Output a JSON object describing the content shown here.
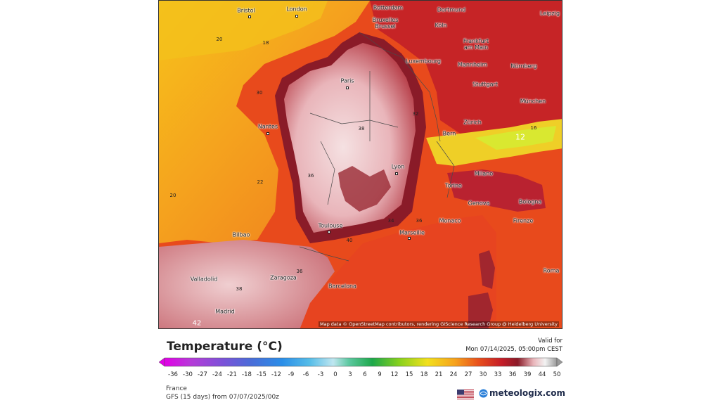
{
  "map": {
    "attribution": "Map data © OpenStreetMap contributors, rendering GIScience Research Group @ Heidelberg University",
    "cities": [
      {
        "name": "Bristol"
      },
      {
        "name": "London"
      },
      {
        "name": "Rotterdam"
      },
      {
        "name": "Dortmund"
      },
      {
        "name": "Leipzig"
      },
      {
        "name": "Bruxelles Brussel"
      },
      {
        "name": "Köln"
      },
      {
        "name": "Frankfurt am Main"
      },
      {
        "name": "Luxembourg"
      },
      {
        "name": "Mannheim"
      },
      {
        "name": "Nürnberg"
      },
      {
        "name": "Stuttgart"
      },
      {
        "name": "München"
      },
      {
        "name": "Paris"
      },
      {
        "name": "Nantes"
      },
      {
        "name": "Zürich"
      },
      {
        "name": "Bern"
      },
      {
        "name": "Lyon"
      },
      {
        "name": "Milano"
      },
      {
        "name": "Torino"
      },
      {
        "name": "Genova"
      },
      {
        "name": "Bologna"
      },
      {
        "name": "Firenze"
      },
      {
        "name": "Monaco"
      },
      {
        "name": "Marseille"
      },
      {
        "name": "Toulouse"
      },
      {
        "name": "Bilbao"
      },
      {
        "name": "Valladolid"
      },
      {
        "name": "Zaragoza"
      },
      {
        "name": "Barcelona"
      },
      {
        "name": "Madrid"
      },
      {
        "name": "Roma"
      }
    ],
    "contour_labels": [
      "20",
      "18",
      "30",
      "32",
      "38",
      "36",
      "40",
      "34",
      "22",
      "20",
      "36",
      "36",
      "38",
      "16",
      "12",
      "42"
    ],
    "colors": {
      "sea_west": "#f39a1e",
      "sea_north": "#f6c21a",
      "hot": "#e84a1c",
      "very_hot": "#c41c28",
      "extreme": "#8a1b28",
      "peak": "#f3d5d6",
      "alpine": "#d9e830"
    }
  },
  "legend": {
    "title": "Temperature (°C)",
    "valid_label": "Valid for",
    "valid_time": "Mon 07/14/2025, 05:00pm CEST",
    "ticks": [
      "-36",
      "-30",
      "-27",
      "-24",
      "-21",
      "-18",
      "-15",
      "-12",
      "-9",
      "-6",
      "-3",
      "0",
      "3",
      "6",
      "9",
      "12",
      "15",
      "18",
      "21",
      "24",
      "27",
      "30",
      "33",
      "36",
      "39",
      "44",
      "50"
    ],
    "region": "France",
    "model": "GFS (15 days) from 07/07/2025/00z",
    "brand": "meteologix.com"
  }
}
